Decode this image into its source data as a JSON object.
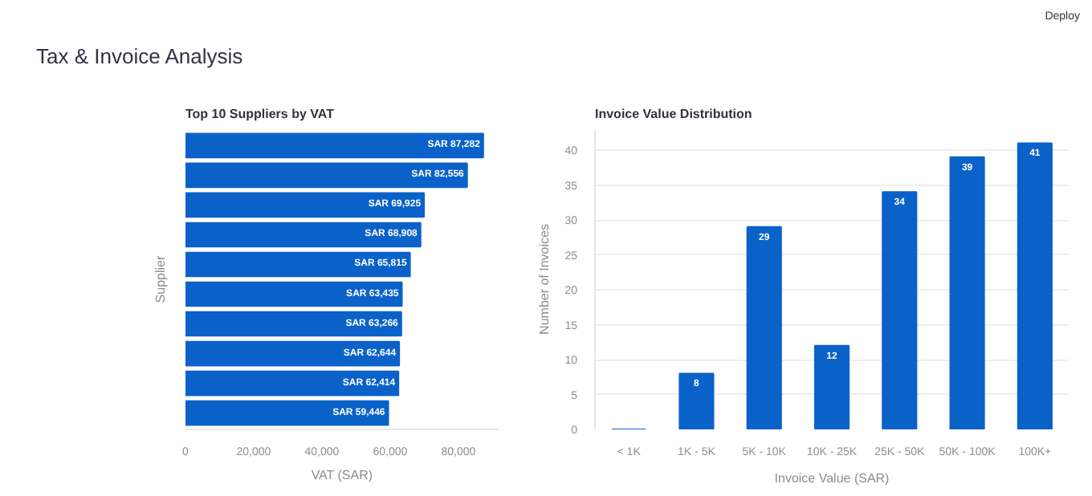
{
  "chart_data": [
    {
      "type": "other",
      "title": "Tax & Invoice Analysis",
      "annotations": [
        "Deploy"
      ]
    },
    {
      "type": "bar",
      "orientation": "horizontal",
      "title": "Top 10 Suppliers by VAT",
      "xlabel": "VAT (SAR)",
      "ylabel": "Supplier",
      "categories": [
        null,
        null,
        null,
        null,
        null,
        null,
        null,
        null,
        null,
        null
      ],
      "values": [
        87282,
        82556,
        69925,
        68908,
        65815,
        63435,
        63266,
        62644,
        62414,
        59446
      ],
      "value_labels": [
        "SAR 87,282",
        "SAR 82,556",
        "SAR 69,925",
        "SAR 68,908",
        "SAR 65,815",
        "SAR 63,435",
        "SAR 63,266",
        "SAR 62,644",
        "SAR 62,414",
        "SAR 59,446"
      ],
      "color": "#0a62c9",
      "xlim": [
        0,
        91800
      ],
      "xticks": [
        0,
        {
          "value": 20000,
          "label": "20,000"
        },
        {
          "value": 40000,
          "label": "40,000"
        },
        {
          "value": 60000,
          "label": "60,000"
        },
        {
          "value": 80000,
          "label": "80,000"
        }
      ],
      "grid": false
    },
    {
      "type": "bar",
      "title": "Invoice Value Distribution",
      "xlabel": "Invoice Value (SAR)",
      "ylabel": "Number of Invoices",
      "categories": [
        "< 1K",
        "1K - 5K",
        "5K - 10K",
        "10K - 25K",
        "25K - 50K",
        "50K - 100K",
        "100K+"
      ],
      "values": [
        0,
        8,
        29,
        12,
        34,
        39,
        41
      ],
      "value_labels": [
        null,
        "8",
        "29",
        "12",
        "34",
        "39",
        "41"
      ],
      "color": "#0a62c9",
      "ylim": [
        0,
        43
      ],
      "yticks": [
        0,
        5,
        10,
        15,
        20,
        25,
        30,
        35,
        40
      ],
      "grid": "y"
    }
  ]
}
